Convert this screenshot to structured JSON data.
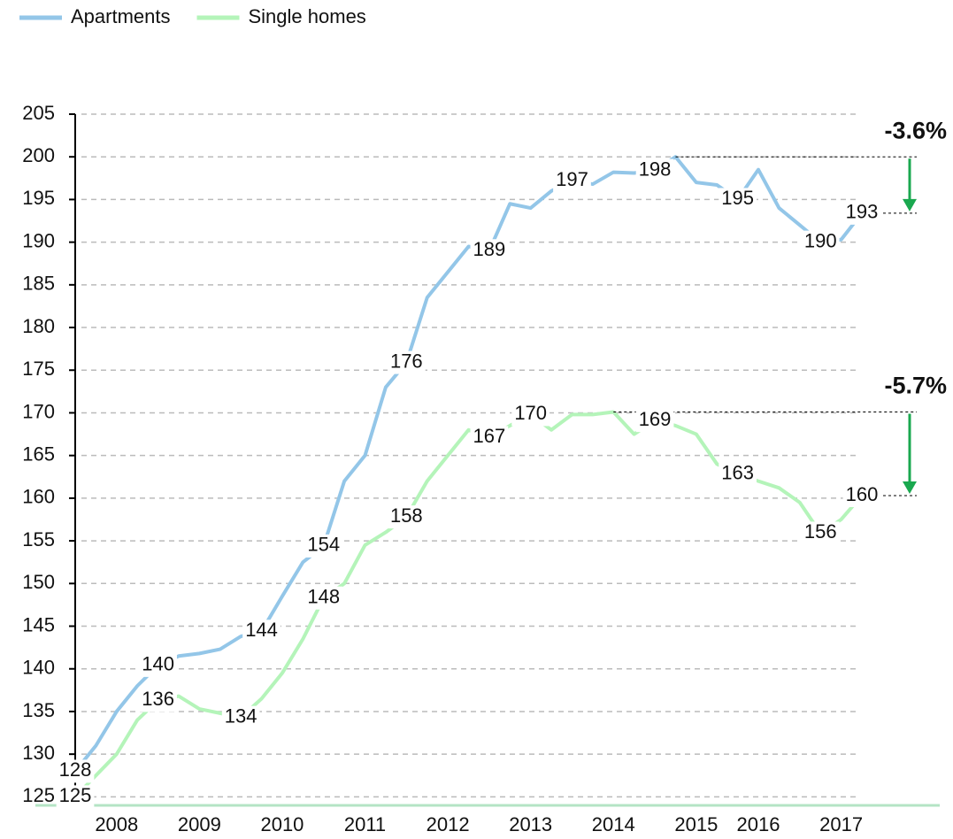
{
  "chart_data": {
    "type": "line",
    "categories": [
      null,
      null,
      "2008",
      null,
      null,
      null,
      "2009",
      null,
      null,
      null,
      "2010",
      null,
      null,
      null,
      "2011",
      null,
      null,
      null,
      "2012",
      null,
      null,
      null,
      "2013",
      null,
      null,
      null,
      "2014",
      null,
      null,
      null,
      "2015",
      null,
      null,
      "2016",
      null,
      null,
      null,
      "2017",
      null
    ],
    "series": [
      {
        "name": "Apartments",
        "color": "#93c6e8",
        "values": [
          128,
          131,
          135,
          138,
          140.4,
          141.5,
          141.8,
          142.3,
          143.8,
          144.4,
          148.5,
          152.5,
          154.4,
          162,
          165,
          173,
          175.9,
          183.5,
          186.5,
          189.5,
          189,
          194.5,
          194,
          196,
          197.2,
          196.8,
          198.2,
          198.1,
          198.4,
          200,
          197,
          196.7,
          195,
          198.5,
          194,
          192,
          190,
          190.3,
          193.4
        ],
        "value_labels": [
          "128",
          null,
          null,
          null,
          "140",
          null,
          null,
          null,
          null,
          "144",
          null,
          null,
          "154",
          null,
          null,
          null,
          "176",
          null,
          null,
          null,
          "189",
          null,
          null,
          null,
          "197",
          null,
          null,
          null,
          "198",
          null,
          null,
          null,
          "195",
          null,
          null,
          null,
          "190",
          null,
          "193"
        ]
      },
      {
        "name": "Single homes",
        "color": "#b4f4b9",
        "values": [
          125,
          127.5,
          130,
          134,
          136.3,
          136.8,
          135.3,
          134.8,
          134.3,
          136.5,
          139.5,
          143.5,
          148.3,
          150,
          154.5,
          156,
          157.8,
          162,
          165,
          168,
          167.1,
          168.5,
          169.8,
          168,
          169.8,
          169.8,
          170.1,
          167.5,
          169.1,
          168.5,
          167.5,
          164,
          162.8,
          162,
          161.2,
          159.5,
          155.9,
          157.5,
          160.3
        ],
        "value_labels": [
          "125",
          null,
          null,
          null,
          "136",
          null,
          null,
          null,
          "134",
          null,
          null,
          null,
          "148",
          null,
          null,
          null,
          "158",
          null,
          null,
          null,
          "167",
          null,
          "170",
          null,
          null,
          null,
          null,
          null,
          "169",
          null,
          null,
          null,
          "163",
          null,
          null,
          null,
          "156",
          null,
          "160"
        ]
      }
    ],
    "annotations": [
      "-3.6%",
      "-5.7%"
    ],
    "ylim": [
      124,
      205
    ],
    "yticks": [
      125,
      130,
      135,
      140,
      145,
      150,
      155,
      160,
      165,
      170,
      175,
      180,
      185,
      190,
      195,
      200,
      205
    ],
    "grid": true,
    "legend": "top-left"
  }
}
